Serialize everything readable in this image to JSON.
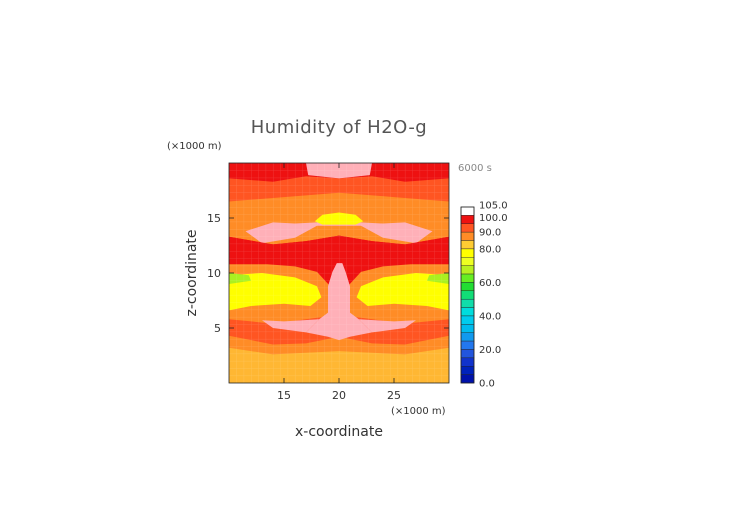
{
  "chart_data": {
    "type": "heatmap",
    "title": "Humidity of H2O-g",
    "xlabel": "x-coordinate",
    "ylabel": "z-coordinate",
    "x_unit": "(×1000 m)",
    "y_unit": "(×1000 m)",
    "time_label": "6000 s",
    "xlim": [
      10,
      30
    ],
    "ylim": [
      0,
      20
    ],
    "x_ticks": [
      15,
      20,
      25
    ],
    "y_ticks": [
      5,
      10,
      15
    ],
    "colorbar": {
      "labels": [
        "105.0",
        "100.0",
        "90.0",
        "80.0",
        "60.0",
        "40.0",
        "20.0",
        "0.0"
      ],
      "label_values": [
        105,
        100,
        90,
        80,
        60,
        40,
        20,
        0
      ],
      "bands": [
        {
          "from": 100,
          "to": 105,
          "color": "#ffffff"
        },
        {
          "from": 95,
          "to": 100,
          "color": "#ee1111"
        },
        {
          "from": 90,
          "to": 95,
          "color": "#ff5522"
        },
        {
          "from": 85,
          "to": 90,
          "color": "#ff8c26"
        },
        {
          "from": 80,
          "to": 85,
          "color": "#ffcc33"
        },
        {
          "from": 75,
          "to": 80,
          "color": "#ffff00"
        },
        {
          "from": 70,
          "to": 75,
          "color": "#eeff22"
        },
        {
          "from": 65,
          "to": 70,
          "color": "#b8f020"
        },
        {
          "from": 60,
          "to": 65,
          "color": "#66ee22"
        },
        {
          "from": 55,
          "to": 60,
          "color": "#22dd33"
        },
        {
          "from": 50,
          "to": 55,
          "color": "#11dd77"
        },
        {
          "from": 45,
          "to": 50,
          "color": "#11ddaa"
        },
        {
          "from": 40,
          "to": 45,
          "color": "#00dddd"
        },
        {
          "from": 35,
          "to": 40,
          "color": "#00ccee"
        },
        {
          "from": 30,
          "to": 35,
          "color": "#00bbee"
        },
        {
          "from": 25,
          "to": 30,
          "color": "#1199ee"
        },
        {
          "from": 20,
          "to": 25,
          "color": "#2277ee"
        },
        {
          "from": 15,
          "to": 20,
          "color": "#2255dd"
        },
        {
          "from": 10,
          "to": 15,
          "color": "#1133cc"
        },
        {
          "from": 5,
          "to": 10,
          "color": "#0022bb"
        },
        {
          "from": 0,
          "to": 5,
          "color": "#0011aa"
        }
      ]
    },
    "field_colors": {
      "pink": "#ffb0b8",
      "red": "#ee1111",
      "orange_red": "#ff5522",
      "orange": "#ff8c26",
      "light_orange": "#ffb733",
      "yellow": "#ffff00",
      "yellow_green": "#aaf020"
    },
    "regions": [
      {
        "color": "orange",
        "points": [
          [
            10,
            0
          ],
          [
            30,
            0
          ],
          [
            30,
            20
          ],
          [
            10,
            20
          ]
        ]
      },
      {
        "color": "light_orange",
        "points": [
          [
            10,
            0
          ],
          [
            30,
            0
          ],
          [
            30,
            3.2
          ],
          [
            26,
            2.6
          ],
          [
            20,
            2.9
          ],
          [
            14,
            2.6
          ],
          [
            10,
            3.2
          ]
        ]
      },
      {
        "color": "orange_red",
        "points": [
          [
            10,
            4.3
          ],
          [
            14,
            3.5
          ],
          [
            17,
            3.6
          ],
          [
            20,
            4.2
          ],
          [
            23,
            3.6
          ],
          [
            26,
            3.5
          ],
          [
            30,
            4.3
          ],
          [
            30,
            5.8
          ],
          [
            26,
            5.4
          ],
          [
            23,
            5.8
          ],
          [
            20,
            6.2
          ],
          [
            17,
            5.8
          ],
          [
            14,
            5.4
          ],
          [
            10,
            5.8
          ]
        ]
      },
      {
        "color": "red",
        "points": [
          [
            10,
            10.8
          ],
          [
            13.5,
            10.8
          ],
          [
            16,
            10.6
          ],
          [
            18,
            10.1
          ],
          [
            19.2,
            8.8
          ],
          [
            19,
            6.8
          ],
          [
            20,
            6.1
          ],
          [
            21,
            6.8
          ],
          [
            20.8,
            8.8
          ],
          [
            22,
            10.1
          ],
          [
            24,
            10.6
          ],
          [
            26.5,
            10.8
          ],
          [
            30,
            10.8
          ],
          [
            30,
            13.3
          ],
          [
            26,
            12.6
          ],
          [
            23,
            12.9
          ],
          [
            20,
            13.4
          ],
          [
            17,
            12.9
          ],
          [
            14,
            12.6
          ],
          [
            10,
            13.3
          ]
        ]
      },
      {
        "color": "pink",
        "points": [
          [
            19.4,
            10.1
          ],
          [
            19.8,
            10.9
          ],
          [
            20.3,
            10.9
          ],
          [
            20.6,
            10.1
          ],
          [
            21,
            8.8
          ],
          [
            21,
            6.4
          ],
          [
            21.8,
            5.8
          ],
          [
            23,
            4.6
          ],
          [
            21,
            4.2
          ],
          [
            20,
            3.9
          ],
          [
            19,
            4.2
          ],
          [
            17,
            4.6
          ],
          [
            18.2,
            5.8
          ],
          [
            19,
            6.4
          ],
          [
            19,
            8.8
          ]
        ]
      },
      {
        "color": "pink",
        "points": [
          [
            11.5,
            13.8
          ],
          [
            13,
            12.7
          ],
          [
            16,
            13.2
          ],
          [
            18,
            14.3
          ],
          [
            22,
            14.3
          ],
          [
            24,
            13.2
          ],
          [
            27,
            12.7
          ],
          [
            28.5,
            13.8
          ],
          [
            26,
            14.6
          ],
          [
            24,
            14.5
          ],
          [
            20,
            14.7
          ],
          [
            16,
            14.5
          ],
          [
            14,
            14.6
          ]
        ]
      },
      {
        "color": "pink",
        "points": [
          [
            17,
            4.6
          ],
          [
            18.2,
            5.8
          ],
          [
            15,
            5.6
          ],
          [
            13,
            5.7
          ],
          [
            14,
            5.0
          ]
        ]
      },
      {
        "color": "pink",
        "points": [
          [
            23,
            4.6
          ],
          [
            21.8,
            5.8
          ],
          [
            25,
            5.6
          ],
          [
            27,
            5.7
          ],
          [
            26,
            5.0
          ]
        ]
      },
      {
        "color": "yellow",
        "points": [
          [
            10,
            9.8
          ],
          [
            13,
            10.0
          ],
          [
            16,
            9.6
          ],
          [
            18,
            8.8
          ],
          [
            18.4,
            7.8
          ],
          [
            17.4,
            7.0
          ],
          [
            15,
            7.2
          ],
          [
            12,
            7.0
          ],
          [
            10,
            6.6
          ]
        ]
      },
      {
        "color": "yellow",
        "points": [
          [
            30,
            9.8
          ],
          [
            27,
            10.0
          ],
          [
            24,
            9.6
          ],
          [
            22,
            8.8
          ],
          [
            21.6,
            7.8
          ],
          [
            22.6,
            7.0
          ],
          [
            25,
            7.2
          ],
          [
            28,
            7.0
          ],
          [
            30,
            6.6
          ]
        ]
      },
      {
        "color": "yellow_green",
        "points": [
          [
            10,
            10.0
          ],
          [
            11.8,
            9.8
          ],
          [
            12,
            9.3
          ],
          [
            10,
            9.0
          ]
        ]
      },
      {
        "color": "yellow_green",
        "points": [
          [
            30,
            10.0
          ],
          [
            28.2,
            9.8
          ],
          [
            28,
            9.3
          ],
          [
            30,
            9.0
          ]
        ]
      },
      {
        "color": "orange_red",
        "points": [
          [
            10,
            16.5
          ],
          [
            15,
            16.9
          ],
          [
            20,
            17.3
          ],
          [
            25,
            16.9
          ],
          [
            30,
            16.5
          ],
          [
            30,
            19.2
          ],
          [
            20,
            19.3
          ],
          [
            10,
            19.2
          ]
        ]
      },
      {
        "color": "red",
        "points": [
          [
            10,
            18.6
          ],
          [
            14,
            18.3
          ],
          [
            17,
            18.8
          ],
          [
            20,
            18.6
          ],
          [
            23,
            18.8
          ],
          [
            26,
            18.3
          ],
          [
            30,
            18.6
          ],
          [
            30,
            20
          ],
          [
            10,
            20
          ]
        ]
      },
      {
        "color": "pink",
        "points": [
          [
            17,
            20
          ],
          [
            17.2,
            18.9
          ],
          [
            20,
            18.6
          ],
          [
            22.8,
            18.9
          ],
          [
            23,
            20
          ]
        ]
      },
      {
        "color": "yellow",
        "points": [
          [
            17.8,
            14.7
          ],
          [
            18.5,
            15.3
          ],
          [
            20,
            15.5
          ],
          [
            21.5,
            15.3
          ],
          [
            22.2,
            14.7
          ],
          [
            21.5,
            14.4
          ],
          [
            18.5,
            14.4
          ]
        ]
      },
      {
        "color": "red",
        "points": [
          [
            10,
            12.2
          ],
          [
            13,
            11.8
          ],
          [
            16,
            12.0
          ],
          [
            20,
            12.6
          ],
          [
            24,
            12.0
          ],
          [
            27,
            11.8
          ],
          [
            30,
            12.2
          ],
          [
            30,
            13.3
          ],
          [
            26,
            12.6
          ],
          [
            23,
            12.9
          ],
          [
            20,
            13.4
          ],
          [
            17,
            12.9
          ],
          [
            14,
            12.6
          ],
          [
            10,
            13.3
          ]
        ]
      }
    ]
  }
}
